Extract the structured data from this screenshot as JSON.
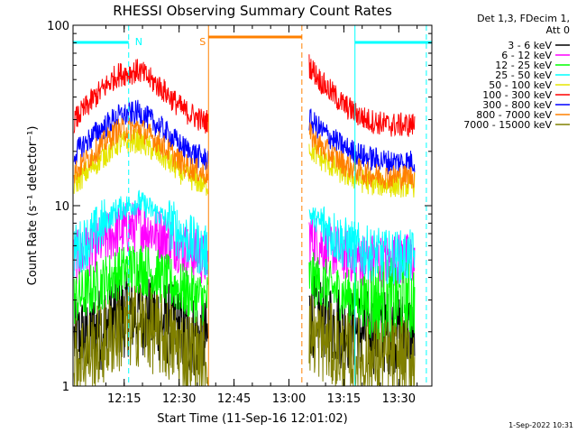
{
  "chart_data": {
    "type": "line",
    "title": "RHESSI Observing Summary Count Rates",
    "xlabel": "Start Time (11-Sep-16 12:01:02)",
    "ylabel": "Count Rate (s⁻¹ detector⁻¹)",
    "yscale": "log",
    "ylim": [
      1,
      100
    ],
    "xlim_minutes": [
      0,
      98
    ],
    "x_ticks": [
      {
        "label": "12:15",
        "minute": 13.97
      },
      {
        "label": "12:30",
        "minute": 28.97
      },
      {
        "label": "12:45",
        "minute": 43.97
      },
      {
        "label": "13:00",
        "minute": 58.97
      },
      {
        "label": "13:15",
        "minute": 73.97
      },
      {
        "label": "13:30",
        "minute": 88.97
      }
    ],
    "y_ticks": [
      {
        "label": "1",
        "value": 1
      },
      {
        "label": "10",
        "value": 10
      },
      {
        "label": "100",
        "value": 100
      }
    ],
    "gap_minutes": [
      37.0,
      64.5
    ],
    "legend_header": [
      "Det 1,3, FDecim 1,",
      "Att 0"
    ],
    "series": [
      {
        "name": "3 - 6 keV",
        "color": "#000000",
        "x": [
          0,
          6,
          12,
          18,
          24,
          30,
          36,
          64.5,
          68,
          74,
          80,
          86,
          92,
          98
        ],
        "values": [
          1.8,
          2.0,
          2.4,
          2.6,
          2.3,
          2.0,
          1.8,
          2.5,
          2.4,
          2.1,
          2.0,
          2.0,
          2.0,
          2.0
        ]
      },
      {
        "name": "6 - 12 keV",
        "color": "#ff00ff",
        "x": [
          0,
          6,
          12,
          18,
          24,
          30,
          36,
          64.5,
          68,
          74,
          80,
          86,
          92,
          98
        ],
        "values": [
          5.0,
          6.0,
          7.2,
          7.8,
          6.9,
          5.8,
          5.0,
          6.8,
          6.0,
          5.4,
          5.0,
          5.0,
          5.0,
          5.0
        ]
      },
      {
        "name": "12 - 25 keV",
        "color": "#00ff00",
        "x": [
          0,
          6,
          12,
          18,
          24,
          30,
          36,
          64.5,
          68,
          74,
          80,
          86,
          92,
          98
        ],
        "values": [
          3.0,
          3.5,
          4.2,
          4.6,
          4.0,
          3.4,
          3.0,
          4.0,
          3.7,
          3.2,
          3.0,
          3.0,
          3.0,
          3.0
        ]
      },
      {
        "name": "25 - 50 keV",
        "color": "#00ffff",
        "x": [
          0,
          6,
          12,
          18,
          24,
          30,
          36,
          64.5,
          68,
          74,
          80,
          86,
          92,
          98
        ],
        "values": [
          5.5,
          7.0,
          9.5,
          10.5,
          8.8,
          6.8,
          5.5,
          9.0,
          7.8,
          6.2,
          5.5,
          5.2,
          5.2,
          5.2
        ]
      },
      {
        "name": "50 - 100 keV",
        "color": "#e6e600",
        "x": [
          0,
          6,
          12,
          18,
          24,
          30,
          36,
          64.5,
          68,
          74,
          80,
          86,
          92,
          98
        ],
        "values": [
          13.0,
          17.0,
          22.0,
          23.0,
          19.0,
          15.0,
          13.0,
          21.0,
          18.0,
          15.0,
          13.5,
          13.0,
          13.0,
          13.0
        ]
      },
      {
        "name": "100 - 300 keV",
        "color": "#ff0000",
        "x": [
          0,
          6,
          12,
          18,
          24,
          30,
          36,
          64.5,
          68,
          74,
          80,
          86,
          92,
          98
        ],
        "values": [
          29.0,
          40.0,
          53.0,
          56.0,
          45.0,
          34.0,
          29.0,
          60.0,
          48.0,
          36.0,
          30.0,
          28.0,
          28.0,
          28.0
        ]
      },
      {
        "name": "300 - 800 keV",
        "color": "#0000ff",
        "x": [
          0,
          6,
          12,
          18,
          24,
          30,
          36,
          64.5,
          68,
          74,
          80,
          86,
          92,
          98
        ],
        "values": [
          19.0,
          25.0,
          31.0,
          33.0,
          27.0,
          21.0,
          18.0,
          30.0,
          26.0,
          21.0,
          18.5,
          17.5,
          17.5,
          17.5
        ]
      },
      {
        "name": "800 - 7000 keV",
        "color": "#ff8000",
        "x": [
          0,
          6,
          12,
          18,
          24,
          30,
          36,
          64.5,
          68,
          74,
          80,
          86,
          92,
          98
        ],
        "values": [
          15.0,
          20.0,
          26.0,
          27.0,
          22.0,
          17.0,
          15.0,
          25.0,
          21.0,
          17.0,
          15.0,
          14.5,
          14.5,
          14.5
        ]
      },
      {
        "name": "7000 - 15000 keV",
        "color": "#808000",
        "x": [
          0,
          6,
          12,
          18,
          24,
          30,
          36,
          64.5,
          68,
          74,
          80,
          86,
          92,
          98
        ],
        "values": [
          1.4,
          1.6,
          2.0,
          2.2,
          1.9,
          1.6,
          1.4,
          2.0,
          1.8,
          1.5,
          1.4,
          1.4,
          1.4,
          1.4
        ]
      }
    ],
    "orbit_flags": [
      {
        "label": "N",
        "color": "#00ffff",
        "bars": [
          [
            0,
            15.2
          ],
          [
            77,
            98
          ]
        ],
        "edges": [
          15.2,
          77,
          96.5
        ]
      },
      {
        "label": "S",
        "color": "#ff8000",
        "bars": [
          [
            37,
            62.5
          ]
        ],
        "edges": [
          37,
          62.5
        ]
      }
    ]
  },
  "footer": {
    "timestamp": "1-Sep-2022 10:31"
  }
}
